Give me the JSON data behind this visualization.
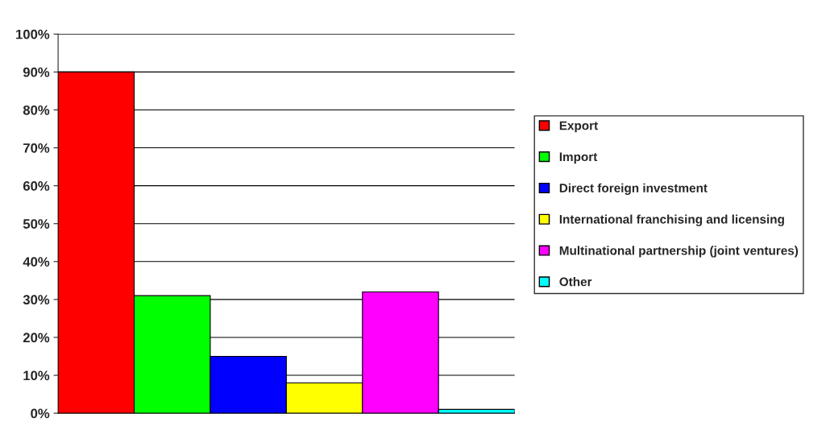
{
  "chart_data": {
    "type": "bar",
    "categories": [
      null
    ],
    "series": [
      {
        "name": "Export",
        "color": "#ff0000",
        "values": [
          90
        ]
      },
      {
        "name": "Import",
        "color": "#00ff00",
        "values": [
          31
        ]
      },
      {
        "name": "Direct foreign investment",
        "color": "#0000ff",
        "values": [
          15
        ]
      },
      {
        "name": "International franchising and licensing",
        "color": "#ffff00",
        "values": [
          8
        ]
      },
      {
        "name": "Multinational partnership (joint ventures)",
        "color": "#ff00ff",
        "values": [
          32
        ]
      },
      {
        "name": "Other",
        "color": "#00ffff",
        "values": [
          1
        ]
      }
    ],
    "ylim": [
      0,
      100
    ],
    "yticks": [
      {
        "value": 0,
        "label": "0%"
      },
      {
        "value": 10,
        "label": "10%"
      },
      {
        "value": 20,
        "label": "20%"
      },
      {
        "value": 30,
        "label": "30%"
      },
      {
        "value": 40,
        "label": "40%"
      },
      {
        "value": 50,
        "label": "50%"
      },
      {
        "value": 60,
        "label": "60%"
      },
      {
        "value": 70,
        "label": "70%"
      },
      {
        "value": 80,
        "label": "80%"
      },
      {
        "value": 90,
        "label": "90%"
      },
      {
        "value": 100,
        "label": "100%"
      }
    ],
    "grid": "y",
    "legend": "right"
  }
}
